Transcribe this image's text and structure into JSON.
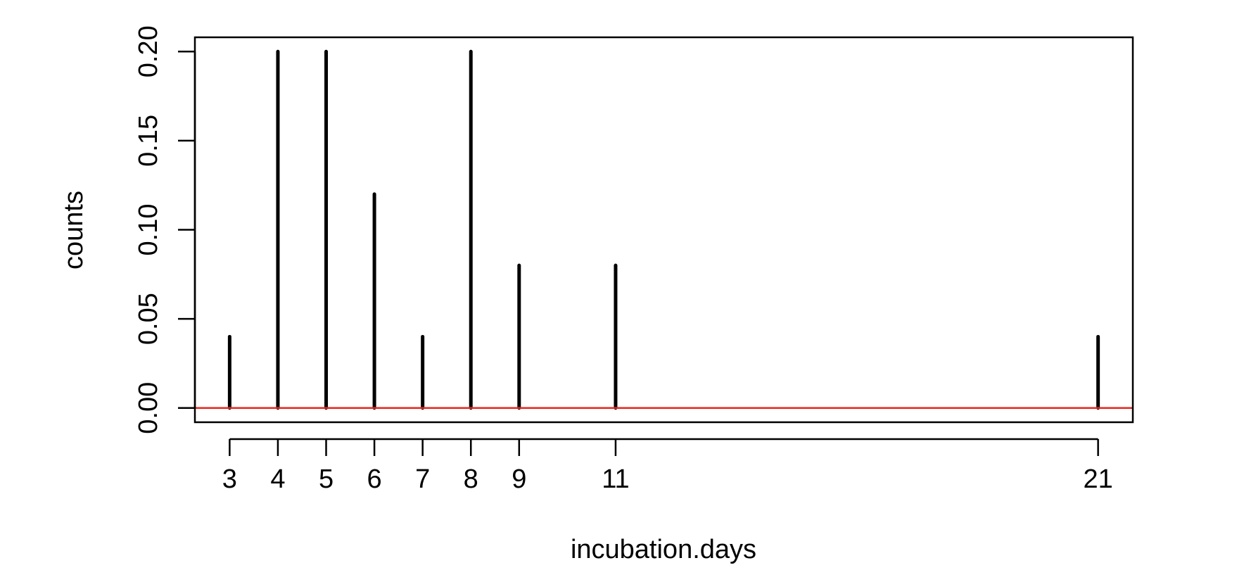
{
  "chart_data": {
    "type": "bar",
    "title": "",
    "xlabel": "incubation.days",
    "ylabel": "counts",
    "x": [
      3,
      4,
      5,
      6,
      7,
      8,
      9,
      11,
      21
    ],
    "values": [
      0.04,
      0.2,
      0.2,
      0.12,
      0.04,
      0.2,
      0.08,
      0.08,
      0.04
    ],
    "x_tick_labels": [
      "3",
      "4",
      "5",
      "6",
      "7",
      "8",
      "9",
      "11",
      "21"
    ],
    "y_ticks": [
      0.0,
      0.05,
      0.1,
      0.15,
      0.2
    ],
    "y_tick_labels": [
      "0.00",
      "0.05",
      "0.10",
      "0.15",
      "0.20"
    ],
    "xlim": [
      2.28,
      21.72
    ],
    "ylim": [
      -0.008,
      0.208
    ],
    "reference_line": {
      "y": 0,
      "color": "#e8261f"
    },
    "bar_color": "#000000",
    "grid": false,
    "legend": "none"
  }
}
